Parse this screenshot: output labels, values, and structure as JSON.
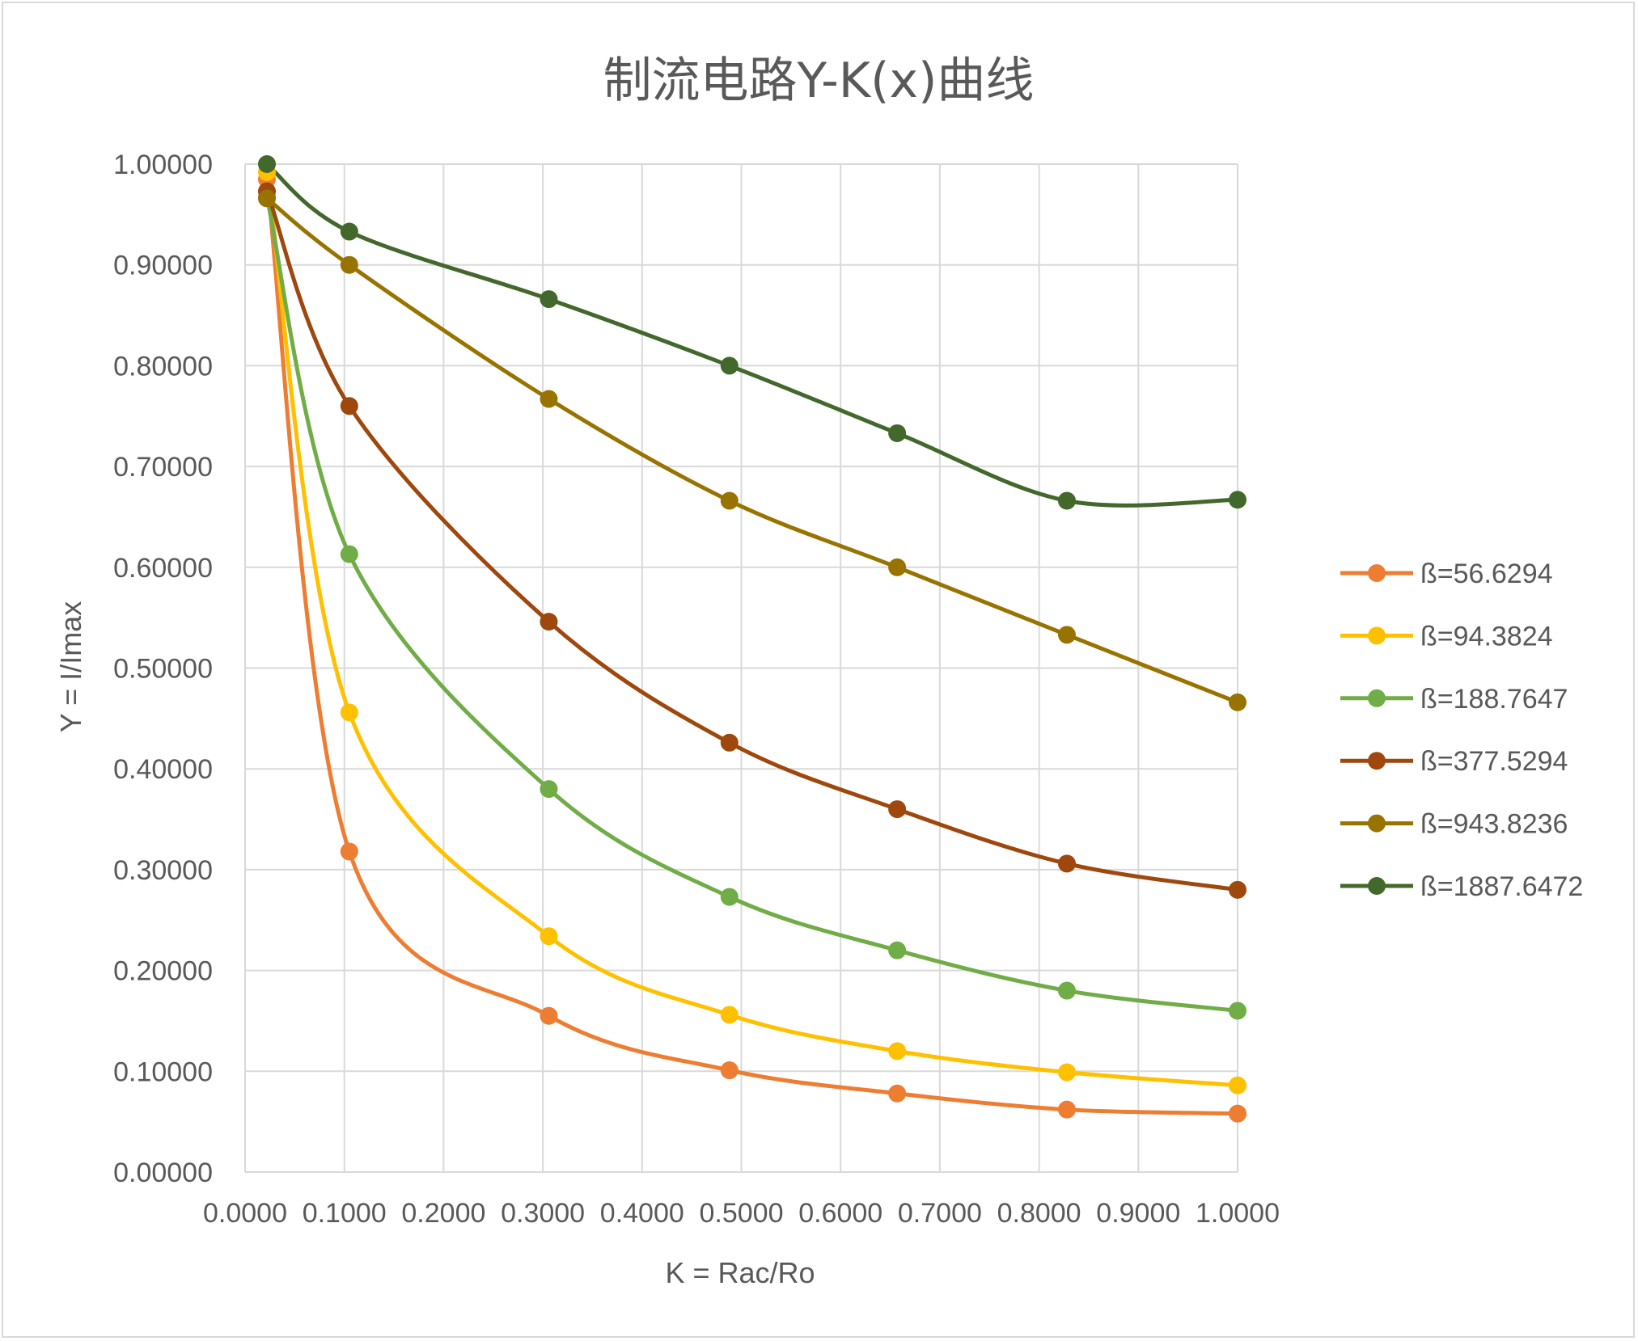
{
  "chart_data": {
    "type": "line",
    "title": "制流电路Y-K(x)曲线",
    "xlabel": "K = Rac/Ro",
    "ylabel": "Y = I/Imax",
    "xlim": [
      0,
      1
    ],
    "ylim": [
      0,
      1
    ],
    "x_ticks": [
      "0.0000",
      "0.1000",
      "0.2000",
      "0.3000",
      "0.4000",
      "0.5000",
      "0.6000",
      "0.7000",
      "0.8000",
      "0.9000",
      "1.0000"
    ],
    "y_ticks": [
      "0.00000",
      "0.10000",
      "0.20000",
      "0.30000",
      "0.40000",
      "0.50000",
      "0.60000",
      "0.70000",
      "0.80000",
      "0.90000",
      "1.00000"
    ],
    "grid": true,
    "smooth": true,
    "legend_position": "right",
    "x": [
      0.022,
      0.105,
      0.306,
      0.488,
      0.657,
      0.828,
      1.0
    ],
    "series": [
      {
        "name": "ß=56.6294",
        "color": "#ED7D31",
        "values": [
          0.985,
          0.318,
          0.155,
          0.101,
          0.078,
          0.062,
          0.058
        ]
      },
      {
        "name": "ß=94.3824",
        "color": "#FFC000",
        "values": [
          0.992,
          0.456,
          0.234,
          0.156,
          0.12,
          0.099,
          0.086
        ]
      },
      {
        "name": "ß=188.7647",
        "color": "#70AD47",
        "values": [
          0.967,
          0.613,
          0.38,
          0.273,
          0.22,
          0.18,
          0.16
        ]
      },
      {
        "name": "ß=377.5294",
        "color": "#9E480E",
        "values": [
          0.973,
          0.76,
          0.546,
          0.426,
          0.36,
          0.306,
          0.28
        ]
      },
      {
        "name": "ß=943.8236",
        "color": "#997300",
        "values": [
          0.966,
          0.9,
          0.767,
          0.666,
          0.6,
          0.533,
          0.466
        ]
      },
      {
        "name": "ß=1887.6472",
        "color": "#43682B",
        "values": [
          1.0,
          0.933,
          0.866,
          0.8,
          0.733,
          0.666,
          0.667
        ]
      }
    ]
  }
}
